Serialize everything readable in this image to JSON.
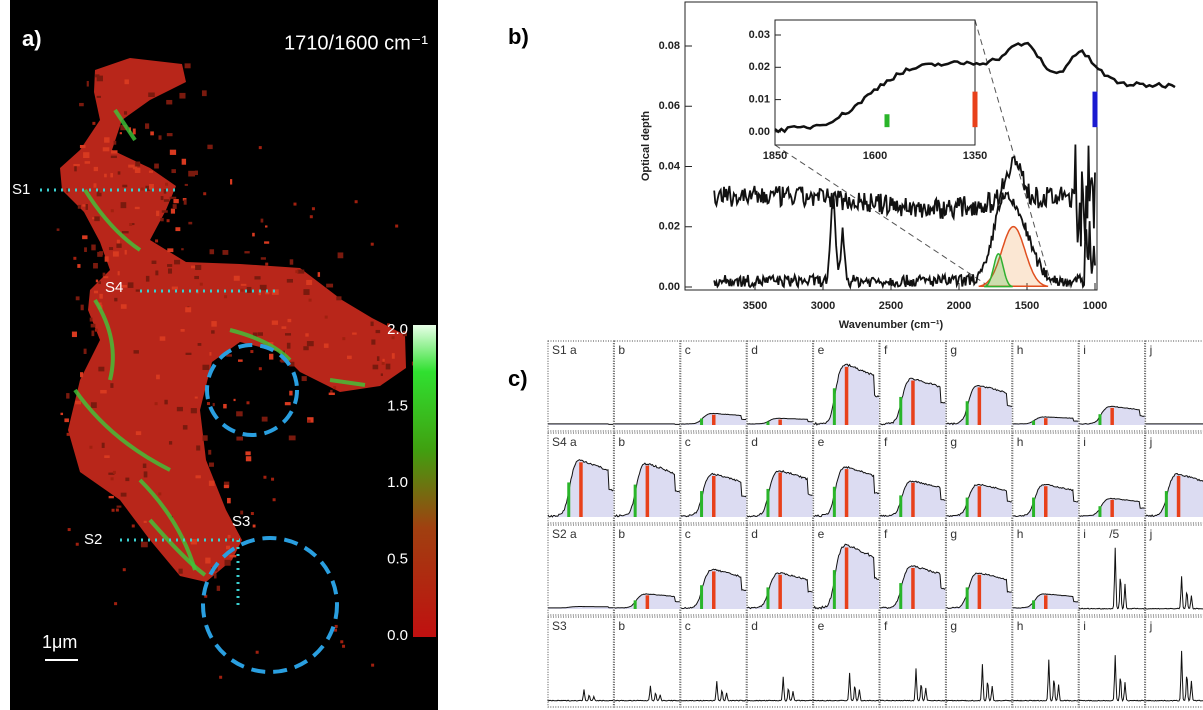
{
  "panel_a": {
    "label": "a)",
    "title": "1710/1600 cm⁻¹",
    "scale": "1μm",
    "line_labels": [
      "S1",
      "S4",
      "S2",
      "S3"
    ],
    "colorbar_ticks": [
      "2.0",
      "1.5",
      "1.0",
      "0.5",
      "0.0"
    ]
  },
  "panel_b": {
    "label": "b)",
    "ylabel": "Optical depth",
    "xlabel": "Wavenumber (cm⁻¹)",
    "yticks": [
      "0.08",
      "0.06",
      "0.04",
      "0.02",
      "0.00"
    ],
    "xticks": [
      "3500",
      "3000",
      "2500",
      "2000",
      "1500",
      "1000"
    ],
    "inset_yticks": [
      "0.03",
      "0.02",
      "0.01",
      "0.00"
    ],
    "inset_xticks": [
      "1850",
      "1600",
      "1350"
    ]
  },
  "panel_c": {
    "label": "c)",
    "rows": [
      [
        "S1 a",
        "b",
        "c",
        "d",
        "e",
        "f",
        "g",
        "h",
        "i",
        "j"
      ],
      [
        "S4 a",
        "b",
        "c",
        "d",
        "e",
        "f",
        "g",
        "h",
        "i",
        "j"
      ],
      [
        "S2 a",
        "b",
        "c",
        "d",
        "e",
        "f",
        "g",
        "h",
        "i",
        "j"
      ],
      [
        "S3",
        "b",
        "c",
        "d",
        "e",
        "f",
        "g",
        "h",
        "i",
        "j"
      ]
    ],
    "note": "/5"
  }
}
